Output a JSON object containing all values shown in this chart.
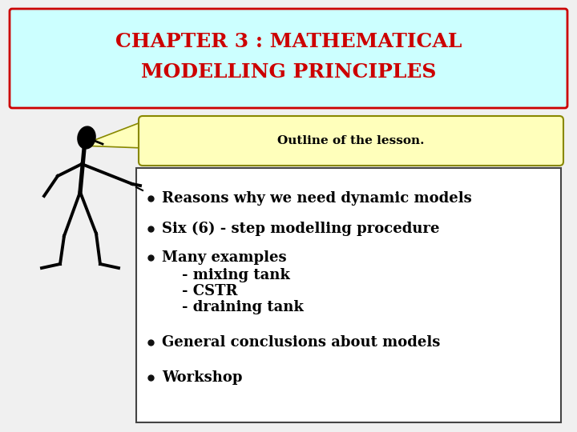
{
  "title_line1": "CHAPTER 3 : MATHEMATICAL",
  "title_line2": "MODELLING PRINCIPLES",
  "title_color": "#cc0000",
  "title_bg_color": "#ccffff",
  "title_border_color": "#cc0000",
  "subtitle_text": "Outline of the lesson.",
  "subtitle_bg_color": "#ffffbb",
  "subtitle_border_color": "#888800",
  "bullet_items_line1": [
    "Reasons why we need dynamic models",
    "Six (6) - step modelling procedure",
    "Many examples",
    "General conclusions about models",
    "Workshop"
  ],
  "many_examples_subitems": [
    "    - mixing tank",
    "    - CSTR",
    "    - draining tank"
  ],
  "bullet_color": "#000000",
  "content_bg_color": "#ffffff",
  "content_border_color": "#444444",
  "bg_color": "#f0f0f0",
  "font_size_title": 18,
  "font_size_subtitle": 11,
  "font_size_bullets": 13
}
